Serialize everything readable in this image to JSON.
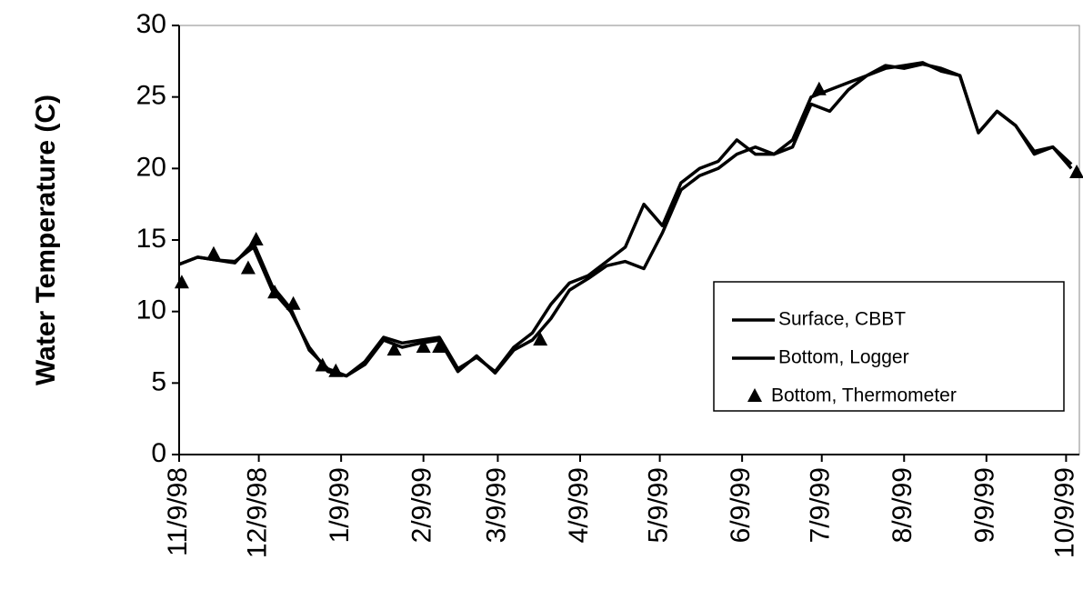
{
  "chart_data": {
    "type": "line",
    "y_label": "Water Temperature (C)",
    "x": [
      "1998-11-09",
      "1998-11-16",
      "1998-11-23",
      "1998-11-30",
      "1998-12-07",
      "1998-12-14",
      "1998-12-21",
      "1998-12-28",
      "1999-01-04",
      "1999-01-11",
      "1999-01-18",
      "1999-01-25",
      "1999-02-01",
      "1999-02-08",
      "1999-02-15",
      "1999-02-22",
      "1999-03-01",
      "1999-03-08",
      "1999-03-15",
      "1999-03-22",
      "1999-03-29",
      "1999-04-05",
      "1999-04-12",
      "1999-04-19",
      "1999-04-26",
      "1999-05-03",
      "1999-05-10",
      "1999-05-17",
      "1999-05-24",
      "1999-05-31",
      "1999-06-07",
      "1999-06-14",
      "1999-06-21",
      "1999-06-28",
      "1999-07-05",
      "1999-07-12",
      "1999-07-19",
      "1999-07-26",
      "1999-08-02",
      "1999-08-09",
      "1999-08-16",
      "1999-08-23",
      "1999-08-30",
      "1999-09-06",
      "1999-09-13",
      "1999-09-20",
      "1999-09-27",
      "1999-10-04",
      "1999-10-11"
    ],
    "series": [
      {
        "name": "Surface, CBBT",
        "color": "#000000",
        "values": [
          13.3,
          13.8,
          13.6,
          13.5,
          14.5,
          11.5,
          10,
          7.5,
          5.8,
          5.5,
          6.5,
          8.2,
          7.8,
          8,
          8.2,
          6,
          6.8,
          5.8,
          7.5,
          8.5,
          10.5,
          12,
          12.5,
          13.5,
          14.5,
          17.5,
          16,
          19,
          20,
          20.5,
          22,
          21,
          21,
          22,
          25,
          25.5,
          26,
          26.5,
          27.2,
          27,
          27.3,
          27,
          26.5,
          22.5,
          24,
          23,
          21,
          21.5,
          20.3
        ]
      },
      {
        "name": "Bottom, Logger",
        "color": "#000000",
        "values": [
          13.3,
          13.8,
          13.6,
          13.4,
          14.8,
          11.8,
          10.2,
          7.3,
          6,
          5.5,
          6.3,
          8,
          7.5,
          7.8,
          8,
          5.8,
          6.9,
          5.7,
          7.3,
          8,
          9.5,
          11.5,
          12.3,
          13.2,
          13.5,
          13,
          15.5,
          18.5,
          19.5,
          20,
          21,
          21.5,
          21,
          21.5,
          24.5,
          24,
          25.5,
          26.5,
          27,
          27.2,
          27.4,
          26.8,
          26.5,
          22.5,
          24,
          23,
          21.2,
          21.5,
          20
        ]
      }
    ],
    "thermometer": {
      "name": "Bottom, Thermometer",
      "color": "#000000",
      "x": [
        "1998-11-10",
        "1998-11-22",
        "1998-12-05",
        "1998-12-08",
        "1998-12-15",
        "1998-12-22",
        "1999-01-02",
        "1999-01-07",
        "1999-01-29",
        "1999-02-09",
        "1999-02-15",
        "1999-03-25",
        "1999-07-08",
        "1999-10-13"
      ],
      "values": [
        12,
        14,
        13,
        15,
        11.3,
        10.5,
        6.2,
        5.8,
        7.3,
        7.5,
        7.5,
        8,
        25.5,
        19.7
      ]
    },
    "xlim": [
      "1998-11-09",
      "1999-10-14"
    ],
    "xticks": [
      {
        "value": "1998-11-09",
        "label": "11/9/98"
      },
      {
        "value": "1998-12-09",
        "label": "12/9/98"
      },
      {
        "value": "1999-01-09",
        "label": "1/9/99"
      },
      {
        "value": "1999-02-09",
        "label": "2/9/99"
      },
      {
        "value": "1999-03-09",
        "label": "3/9/99"
      },
      {
        "value": "1999-04-09",
        "label": "4/9/99"
      },
      {
        "value": "1999-05-09",
        "label": "5/9/99"
      },
      {
        "value": "1999-06-09",
        "label": "6/9/99"
      },
      {
        "value": "1999-07-09",
        "label": "7/9/99"
      },
      {
        "value": "1999-08-09",
        "label": "8/9/99"
      },
      {
        "value": "1999-09-09",
        "label": "9/9/99"
      },
      {
        "value": "1999-10-09",
        "label": "10/9/99"
      }
    ],
    "ylim": [
      0,
      30
    ],
    "yticks": [
      0,
      5,
      10,
      15,
      20,
      25,
      30
    ],
    "grid": false
  }
}
